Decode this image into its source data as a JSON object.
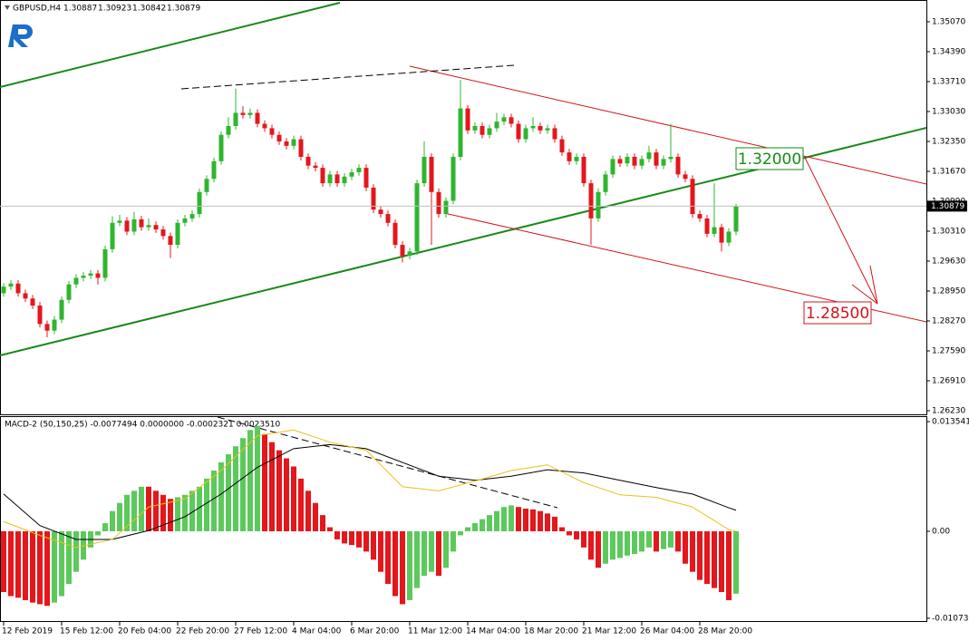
{
  "chart_data": [
    {
      "type": "candlestick",
      "title": "GBPUSD,H4",
      "readout": [
        1.30887,
        1.30923,
        1.30842,
        1.30879
      ],
      "categories": [
        "12 Feb 2019",
        null,
        null,
        null,
        null,
        null,
        null,
        null,
        "15 Feb 12:00",
        null,
        null,
        null,
        null,
        null,
        null,
        null,
        "20 Feb 04:00",
        null,
        null,
        null,
        null,
        null,
        null,
        null,
        "22 Feb 20:00",
        null,
        null,
        null,
        null,
        null,
        null,
        null,
        "27 Feb 12:00",
        null,
        null,
        null,
        null,
        null,
        null,
        null,
        "4 Mar 04:00",
        null,
        null,
        null,
        null,
        null,
        null,
        null,
        "6 Mar 20:00",
        null,
        null,
        null,
        null,
        null,
        null,
        null,
        "11 Mar 12:00",
        null,
        null,
        null,
        null,
        null,
        null,
        null,
        "14 Mar 04:00",
        null,
        null,
        null,
        null,
        null,
        null,
        null,
        "18 Mar 20:00",
        null,
        null,
        null,
        null,
        null,
        null,
        null,
        "21 Mar 12:00",
        null,
        null,
        null,
        null,
        null,
        null,
        null,
        "26 Mar 04:00",
        null,
        null,
        null,
        null,
        null,
        null,
        null,
        "28 Mar 20:00",
        null,
        null,
        null,
        null,
        null
      ],
      "open": [
        1.289,
        1.2905,
        1.2912,
        1.289,
        1.2878,
        1.2862,
        1.282,
        1.2805,
        1.283,
        1.2875,
        1.291,
        1.2925,
        1.293,
        1.2935,
        1.2925,
        1.299,
        1.305,
        1.3055,
        1.303,
        1.3058,
        1.304,
        1.3045,
        1.3035,
        1.302,
        1.3,
        1.305,
        1.306,
        1.307,
        1.312,
        1.315,
        1.319,
        1.325,
        1.327,
        1.33,
        1.3295,
        1.33,
        1.3275,
        1.3265,
        1.325,
        1.3235,
        1.3225,
        1.324,
        1.32,
        1.318,
        1.3175,
        1.314,
        1.316,
        1.314,
        1.3155,
        1.3165,
        1.3175,
        1.313,
        1.308,
        1.307,
        1.305,
        1.3,
        1.2975,
        1.2985,
        1.314,
        1.32,
        1.312,
        1.307,
        1.31,
        1.32,
        1.331,
        1.326,
        1.327,
        1.325,
        1.3265,
        1.328,
        1.329,
        1.3275,
        1.324,
        1.3265,
        1.327,
        1.326,
        1.3265,
        1.324,
        1.321,
        1.319,
        1.32,
        1.314,
        1.306,
        1.312,
        1.316,
        1.3195,
        1.3185,
        1.32,
        1.318,
        1.3195,
        1.321,
        1.318,
        1.3195,
        1.32,
        1.316,
        1.315,
        1.307,
        1.306,
        1.3025,
        1.304,
        1.3005,
        1.303
      ],
      "high": [
        1.2913,
        1.292,
        1.292,
        1.2898,
        1.2886,
        1.287,
        1.2828,
        1.2838,
        1.2883,
        1.2918,
        1.2933,
        1.2938,
        1.2943,
        1.2943,
        1.2998,
        1.3065,
        1.3068,
        1.3063,
        1.3075,
        1.3066,
        1.306,
        1.3053,
        1.3043,
        1.3028,
        1.3058,
        1.3068,
        1.3078,
        1.3128,
        1.3158,
        1.3198,
        1.3258,
        1.329,
        1.3355,
        1.3315,
        1.331,
        1.3308,
        1.3283,
        1.3273,
        1.3258,
        1.3243,
        1.3248,
        1.3248,
        1.3208,
        1.3188,
        1.3183,
        1.3168,
        1.3168,
        1.3163,
        1.3173,
        1.3183,
        1.3183,
        1.3138,
        1.3088,
        1.3078,
        1.3058,
        1.3008,
        1.2993,
        1.3148,
        1.3235,
        1.3208,
        1.3128,
        1.3108,
        1.3208,
        1.3375,
        1.3318,
        1.3278,
        1.3278,
        1.3273,
        1.33,
        1.3298,
        1.3298,
        1.3283,
        1.3273,
        1.329,
        1.3278,
        1.3273,
        1.3273,
        1.3248,
        1.3218,
        1.3208,
        1.3208,
        1.3148,
        1.3128,
        1.3168,
        1.3203,
        1.3203,
        1.3208,
        1.3208,
        1.3203,
        1.3225,
        1.3218,
        1.3203,
        1.3275,
        1.3208,
        1.3168,
        1.3158,
        1.3078,
        1.3068,
        1.314,
        1.3048,
        1.3038,
        1.3093
      ],
      "low": [
        1.2882,
        1.2897,
        1.2882,
        1.287,
        1.2854,
        1.2812,
        1.279,
        1.2797,
        1.2822,
        1.2867,
        1.2902,
        1.2917,
        1.2922,
        1.291,
        1.2917,
        1.2982,
        1.3042,
        1.3022,
        1.3022,
        1.3032,
        1.3032,
        1.3027,
        1.3012,
        1.297,
        1.2992,
        1.3042,
        1.3052,
        1.3062,
        1.3112,
        1.3142,
        1.3182,
        1.3242,
        1.3262,
        1.3287,
        1.3287,
        1.3267,
        1.3257,
        1.3242,
        1.3227,
        1.3217,
        1.3217,
        1.3192,
        1.3172,
        1.3167,
        1.3132,
        1.3132,
        1.3132,
        1.3132,
        1.3147,
        1.3157,
        1.3122,
        1.3072,
        1.3062,
        1.3042,
        1.2992,
        1.296,
        1.2967,
        1.2977,
        1.3132,
        1.3,
        1.3062,
        1.3062,
        1.3092,
        1.3192,
        1.3252,
        1.3252,
        1.3242,
        1.3242,
        1.3257,
        1.3272,
        1.3267,
        1.3232,
        1.3232,
        1.3257,
        1.3252,
        1.3252,
        1.3232,
        1.3202,
        1.3182,
        1.3182,
        1.3132,
        1.3,
        1.3052,
        1.3112,
        1.3152,
        1.3177,
        1.3177,
        1.3172,
        1.3172,
        1.3187,
        1.3172,
        1.3172,
        1.3187,
        1.3152,
        1.3142,
        1.3062,
        1.3052,
        1.3017,
        1.3017,
        1.2985,
        1.2997,
        1.3022
      ],
      "close": [
        1.2905,
        1.2912,
        1.289,
        1.2878,
        1.2862,
        1.282,
        1.2805,
        1.283,
        1.2875,
        1.291,
        1.2925,
        1.293,
        1.2935,
        1.2925,
        1.299,
        1.305,
        1.3055,
        1.303,
        1.3058,
        1.304,
        1.3045,
        1.3035,
        1.302,
        1.3,
        1.305,
        1.306,
        1.307,
        1.312,
        1.315,
        1.319,
        1.325,
        1.327,
        1.33,
        1.3295,
        1.33,
        1.3275,
        1.3265,
        1.325,
        1.3235,
        1.3225,
        1.324,
        1.32,
        1.318,
        1.3175,
        1.314,
        1.316,
        1.314,
        1.3155,
        1.3165,
        1.3175,
        1.313,
        1.308,
        1.307,
        1.305,
        1.3,
        1.2975,
        1.2985,
        1.314,
        1.32,
        1.312,
        1.307,
        1.31,
        1.32,
        1.331,
        1.326,
        1.327,
        1.325,
        1.3265,
        1.328,
        1.329,
        1.3275,
        1.324,
        1.3265,
        1.327,
        1.326,
        1.3265,
        1.324,
        1.321,
        1.319,
        1.32,
        1.314,
        1.306,
        1.312,
        1.316,
        1.3195,
        1.3185,
        1.32,
        1.318,
        1.3195,
        1.321,
        1.318,
        1.3195,
        1.32,
        1.316,
        1.315,
        1.307,
        1.306,
        1.3025,
        1.304,
        1.3005,
        1.303,
        1.3088
      ],
      "up_color": "#2fb52f",
      "down_color": "#e3171c",
      "ylim": [
        1.26127,
        1.35523
      ],
      "yticks": [
        {
          "value": 1.3507,
          "label": "1.35070"
        },
        {
          "value": 1.3439,
          "label": "1.34390"
        },
        {
          "value": 1.3371,
          "label": "1.33710"
        },
        {
          "value": 1.3303,
          "label": "1.33030"
        },
        {
          "value": 1.3235,
          "label": "1.32350"
        },
        {
          "value": 1.3167,
          "label": "1.31670"
        },
        {
          "value": 1.3099,
          "label": "1.30990"
        },
        {
          "value": 1.3031,
          "label": "1.30310"
        },
        {
          "value": 1.2963,
          "label": "1.29630"
        },
        {
          "value": 1.2895,
          "label": "1.28950"
        },
        {
          "value": 1.2827,
          "label": "1.28270"
        },
        {
          "value": 1.2759,
          "label": "1.27590"
        },
        {
          "value": 1.2691,
          "label": "1.26910"
        },
        {
          "value": 1.2623,
          "label": "1.26230"
        }
      ],
      "annotations": [
        "1.32000",
        "1.28500"
      ]
    },
    {
      "type": "macd",
      "title": "MACD-2 (50,150,25) -0.0077494 0.0000000 -0.0002321 0.0023510",
      "histogram": {
        "up_color": "#5cc95c",
        "down_color": "#e3171c",
        "values": [
          -0.0075,
          -0.008,
          -0.0082,
          -0.0085,
          -0.0088,
          -0.009,
          -0.0092,
          -0.0088,
          -0.008,
          -0.0065,
          -0.005,
          -0.0035,
          -0.002,
          -0.0005,
          0.001,
          0.0025,
          0.0035,
          0.0045,
          0.005,
          0.0055,
          0.0055,
          0.005,
          0.0045,
          0.004,
          0.0042,
          0.0045,
          0.005,
          0.0055,
          0.0065,
          0.0075,
          0.0085,
          0.0095,
          0.0105,
          0.0115,
          0.0125,
          0.013,
          0.012,
          0.011,
          0.01,
          0.009,
          0.008,
          0.0065,
          0.005,
          0.0035,
          0.002,
          0.0005,
          -0.001,
          -0.0015,
          -0.0017,
          -0.002,
          -0.0025,
          -0.0035,
          -0.005,
          -0.0065,
          -0.008,
          -0.009,
          -0.0085,
          -0.007,
          -0.0055,
          -0.005,
          -0.0055,
          -0.0045,
          -0.0025,
          -0.0005,
          0.0005,
          0.001,
          0.0015,
          0.002,
          0.0025,
          0.003,
          0.0032,
          0.003,
          0.0028,
          0.0027,
          0.0025,
          0.0022,
          0.0018,
          0.0005,
          -0.0005,
          -0.001,
          -0.002,
          -0.0035,
          -0.0045,
          -0.004,
          -0.0035,
          -0.0033,
          -0.003,
          -0.0028,
          -0.0025,
          -0.002,
          -0.0025,
          -0.0022,
          -0.002,
          -0.0025,
          -0.004,
          -0.005,
          -0.006,
          -0.0065,
          -0.007,
          -0.0075,
          -0.0085,
          -0.0077
        ]
      },
      "series": [
        {
          "color": "#000000",
          "x": [
            0,
            5,
            10,
            15,
            20,
            25,
            30,
            35,
            40,
            45,
            50,
            55,
            60,
            65,
            70,
            75,
            80,
            85,
            90,
            95,
            100,
            101
          ],
          "values": [
            0.0046,
            0.0007,
            -0.001,
            -0.001,
            0.0001,
            0.0018,
            0.0046,
            0.0079,
            0.0102,
            0.0107,
            0.0102,
            0.0085,
            0.0068,
            0.0063,
            0.0068,
            0.0076,
            0.0072,
            0.0063,
            0.0054,
            0.0046,
            0.0029,
            0.0026
          ]
        },
        {
          "color": "#e6c21a",
          "x": [
            0,
            5,
            10,
            15,
            20,
            25,
            30,
            35,
            40,
            45,
            50,
            55,
            60,
            65,
            70,
            75,
            80,
            85,
            90,
            95,
            100,
            101
          ],
          "values": [
            0.0012,
            -0.0005,
            -0.002,
            -0.001,
            0.003,
            0.004,
            0.0075,
            0.0118,
            0.0125,
            0.011,
            0.01,
            0.0055,
            0.005,
            0.0062,
            0.0075,
            0.0082,
            0.006,
            0.0045,
            0.0042,
            0.003,
            0.0002,
            0.0
          ]
        }
      ],
      "ylim": [
        -0.01119,
        0.0141
      ],
      "yticks": [
        0.013541,
        {
          "value": 0,
          "label": "0.00"
        },
        -0.010731
      ]
    }
  ]
}
